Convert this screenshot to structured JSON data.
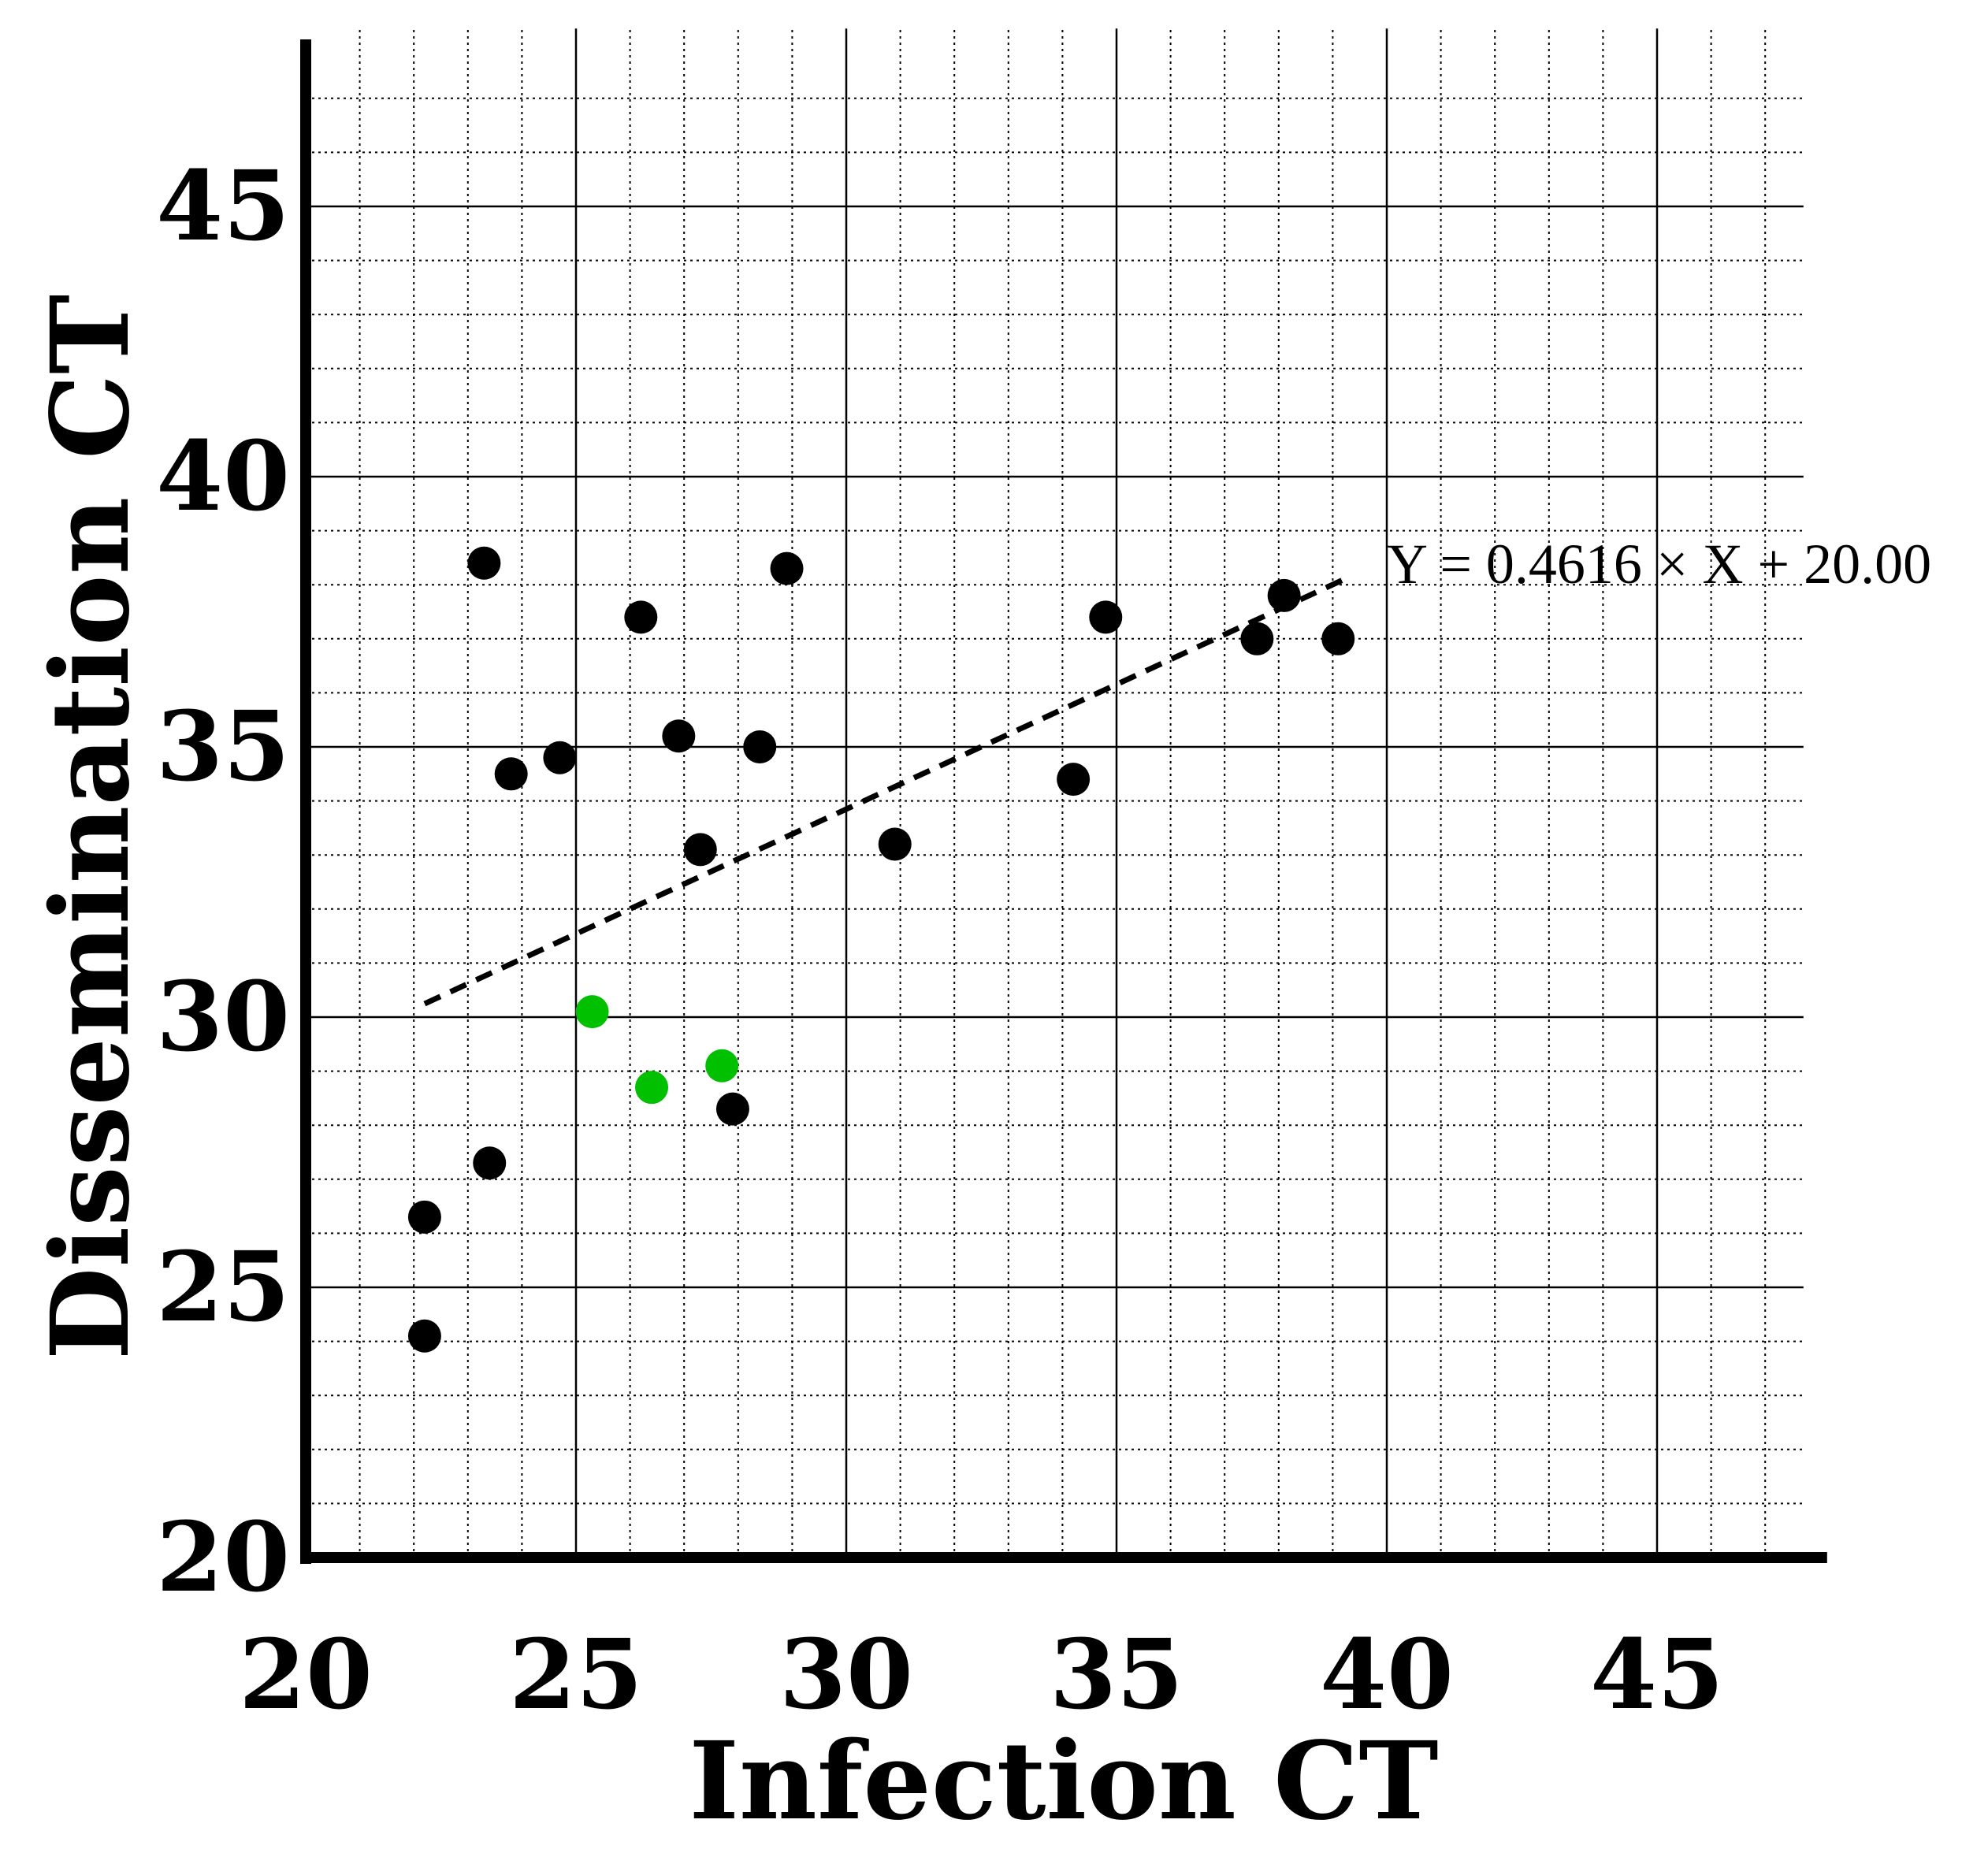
{
  "chart_data": {
    "type": "scatter",
    "title": "",
    "xlabel": "Infection CT",
    "ylabel": "Dissemination CT",
    "xlim": [
      20,
      48
    ],
    "ylim": [
      20,
      48
    ],
    "xticks": [
      "20",
      "25",
      "30",
      "35",
      "40",
      "45"
    ],
    "yticks": [
      "20",
      "25",
      "30",
      "35",
      "40",
      "45"
    ],
    "grid": true,
    "minor_grid_step": 1,
    "colors": {
      "black_points": "#000000",
      "green_points": "#00c000",
      "fit_line": "#000000"
    },
    "series": [
      {
        "name": "black",
        "color": "#000000",
        "points": [
          [
            22.2,
            26.3
          ],
          [
            22.2,
            24.1
          ],
          [
            23.3,
            38.4
          ],
          [
            23.4,
            27.3
          ],
          [
            23.8,
            34.5
          ],
          [
            24.7,
            34.8
          ],
          [
            26.2,
            37.4
          ],
          [
            26.9,
            35.2
          ],
          [
            27.3,
            33.1
          ],
          [
            27.9,
            28.3
          ],
          [
            28.4,
            35.0
          ],
          [
            28.9,
            38.3
          ],
          [
            30.9,
            33.2
          ],
          [
            34.2,
            34.4
          ],
          [
            34.8,
            37.4
          ],
          [
            37.6,
            37.0
          ],
          [
            38.1,
            37.8
          ],
          [
            39.1,
            37.0
          ]
        ]
      },
      {
        "name": "green",
        "color": "#00c000",
        "points": [
          [
            25.3,
            30.1
          ],
          [
            26.4,
            28.7
          ],
          [
            27.7,
            29.1
          ]
        ]
      }
    ],
    "fit": {
      "slope": 0.4616,
      "intercept": 20.0,
      "x_range": [
        22.2,
        39.2
      ],
      "style": "dashed",
      "equation_label": "Y = 0.4616 × X + 20.00"
    }
  }
}
